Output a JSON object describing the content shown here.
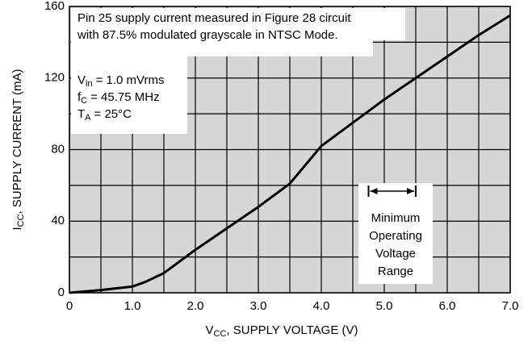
{
  "chart_data": {
    "type": "line",
    "x_label": {
      "symbol": "V",
      "subscript": "CC",
      "text": ", SUPPLY VOLTAGE (V)"
    },
    "y_label": {
      "symbol": "I",
      "subscript": "CC",
      "text": ", SUPPLY CURRENT (mA)"
    },
    "xlim": [
      0,
      7
    ],
    "ylim": [
      0,
      160
    ],
    "xticks": [
      0,
      {
        "value": 1,
        "label": "1.0"
      },
      {
        "value": 2,
        "label": "2.0"
      },
      {
        "value": 3,
        "label": "3.0"
      },
      {
        "value": 4,
        "label": "4.0"
      },
      {
        "value": 5,
        "label": "5.0"
      },
      {
        "value": 6,
        "label": "6.0"
      },
      {
        "value": 7,
        "label": "7.0"
      }
    ],
    "xgrid": [
      0.5,
      1.5,
      2.5,
      3.5,
      4.5,
      5.5,
      6.5
    ],
    "yticks": [
      0,
      40,
      80,
      120,
      160
    ],
    "ygrid": [
      20,
      60,
      100,
      140
    ],
    "grid": true,
    "color": "#000000",
    "series": [
      {
        "name": "ICC",
        "color": "#000000",
        "x": [
          0,
          0.5,
          1.0,
          1.2,
          1.5,
          2.0,
          2.5,
          3.0,
          3.5,
          4.0,
          4.5,
          5.0,
          5.5,
          6.0,
          6.5,
          7.0
        ],
        "values": [
          0,
          1.5,
          3.5,
          6,
          11,
          24,
          36,
          48,
          61,
          82,
          95,
          108,
          120,
          132,
          144,
          155
        ]
      }
    ],
    "annotations": {
      "note": [
        "Pin 25 supply current measured in Figure 28 circuit",
        "with 87.5% modulated grayscale in NTSC Mode."
      ],
      "params": [
        {
          "symbol": "V",
          "subscript": "in",
          "text": "= 1.0 mVrms"
        },
        {
          "symbol": "f",
          "subscript": "C",
          "text": "= 45.75 MHz"
        },
        {
          "symbol": "T",
          "subscript": "A",
          "text": "= 25°C"
        }
      ],
      "range": [
        4.75,
        5.5
      ],
      "range_label": [
        "Minimum",
        "Operating",
        "Voltage",
        "Range"
      ]
    }
  }
}
